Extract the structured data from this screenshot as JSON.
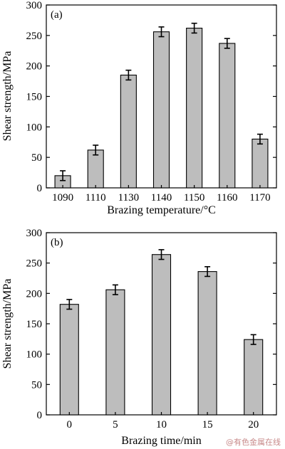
{
  "chart_data": [
    {
      "type": "bar",
      "panel": "(a)",
      "categories": [
        "1090",
        "1110",
        "1130",
        "1140",
        "1150",
        "1160",
        "1170"
      ],
      "values": [
        20,
        62,
        185,
        256,
        262,
        237,
        80
      ],
      "errors": [
        8,
        8,
        8,
        8,
        8,
        8,
        8
      ],
      "xlabel": "Brazing temperature/°C",
      "ylabel": "Shear strength/MPa",
      "ylim": [
        0,
        300
      ],
      "yticks": [
        0,
        50,
        100,
        150,
        200,
        250,
        300
      ],
      "bar_color": "#bdbdbd",
      "grid": false
    },
    {
      "type": "bar",
      "panel": "(b)",
      "categories": [
        "0",
        "5",
        "10",
        "15",
        "20"
      ],
      "values": [
        182,
        206,
        264,
        236,
        124
      ],
      "errors": [
        8,
        8,
        8,
        8,
        8
      ],
      "xlabel": "Brazing time/min",
      "ylabel": "Shear strength/MPa",
      "ylim": [
        0,
        300
      ],
      "yticks": [
        0,
        50,
        100,
        150,
        200,
        250,
        300
      ],
      "bar_color": "#bdbdbd",
      "grid": false
    }
  ],
  "watermark": "@有色金属在线"
}
